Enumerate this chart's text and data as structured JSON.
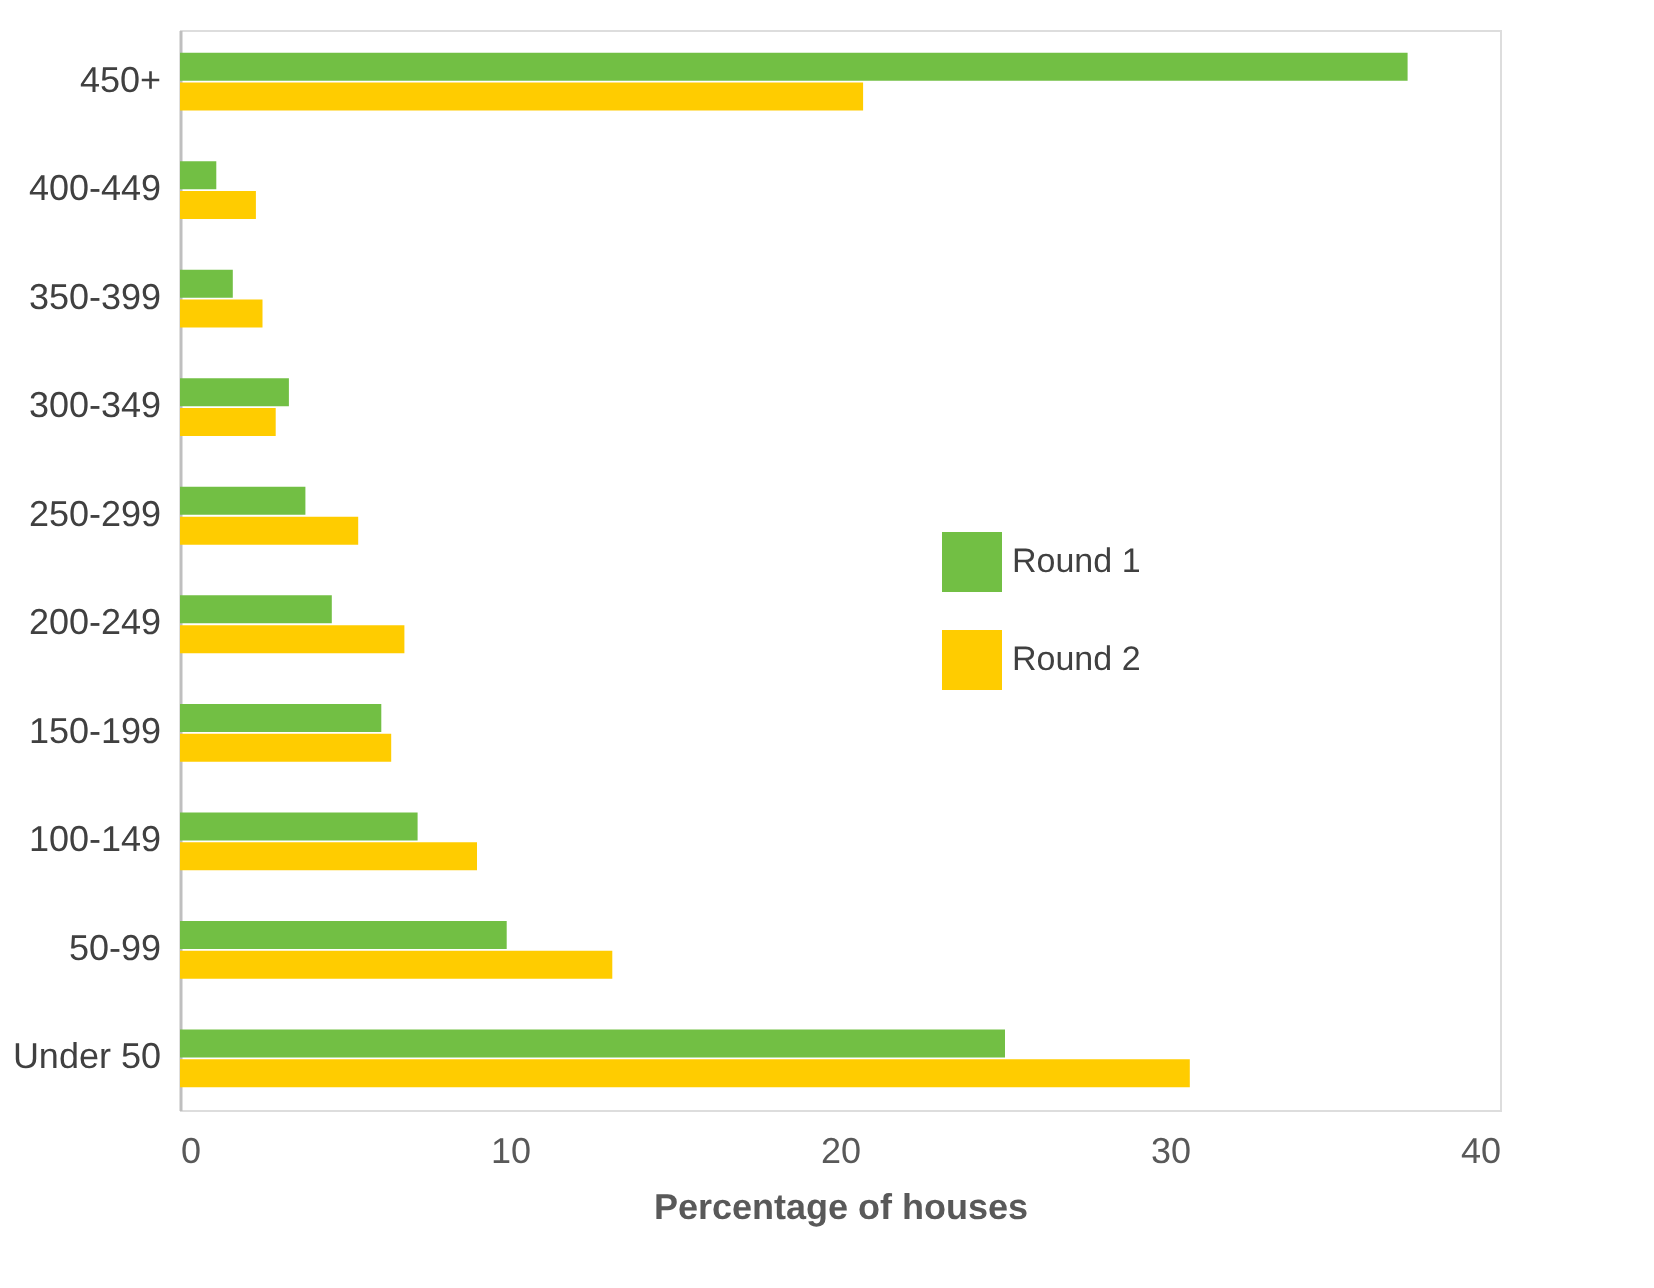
{
  "chart_data": {
    "type": "bar",
    "orientation": "horizontal",
    "xlabel": "Percentage of houses",
    "categories": [
      "450+",
      "400-449",
      "350-399",
      "300-349",
      "250-299",
      "200-249",
      "150-199",
      "100-149",
      "50-99",
      "Under 50"
    ],
    "series": [
      {
        "name": "Round 1",
        "color": "#72bf44",
        "values": [
          37.2,
          1.1,
          1.6,
          3.3,
          3.8,
          4.6,
          6.1,
          7.2,
          9.9,
          25.0
        ]
      },
      {
        "name": "Round 2",
        "color": "#ffcc00",
        "values": [
          20.7,
          2.3,
          2.5,
          2.9,
          5.4,
          6.8,
          6.4,
          9.0,
          13.1,
          30.6
        ]
      }
    ],
    "xlim": [
      0,
      40
    ],
    "xticks": [
      0,
      10,
      20,
      30,
      40
    ],
    "grid": false,
    "legend": "right"
  }
}
